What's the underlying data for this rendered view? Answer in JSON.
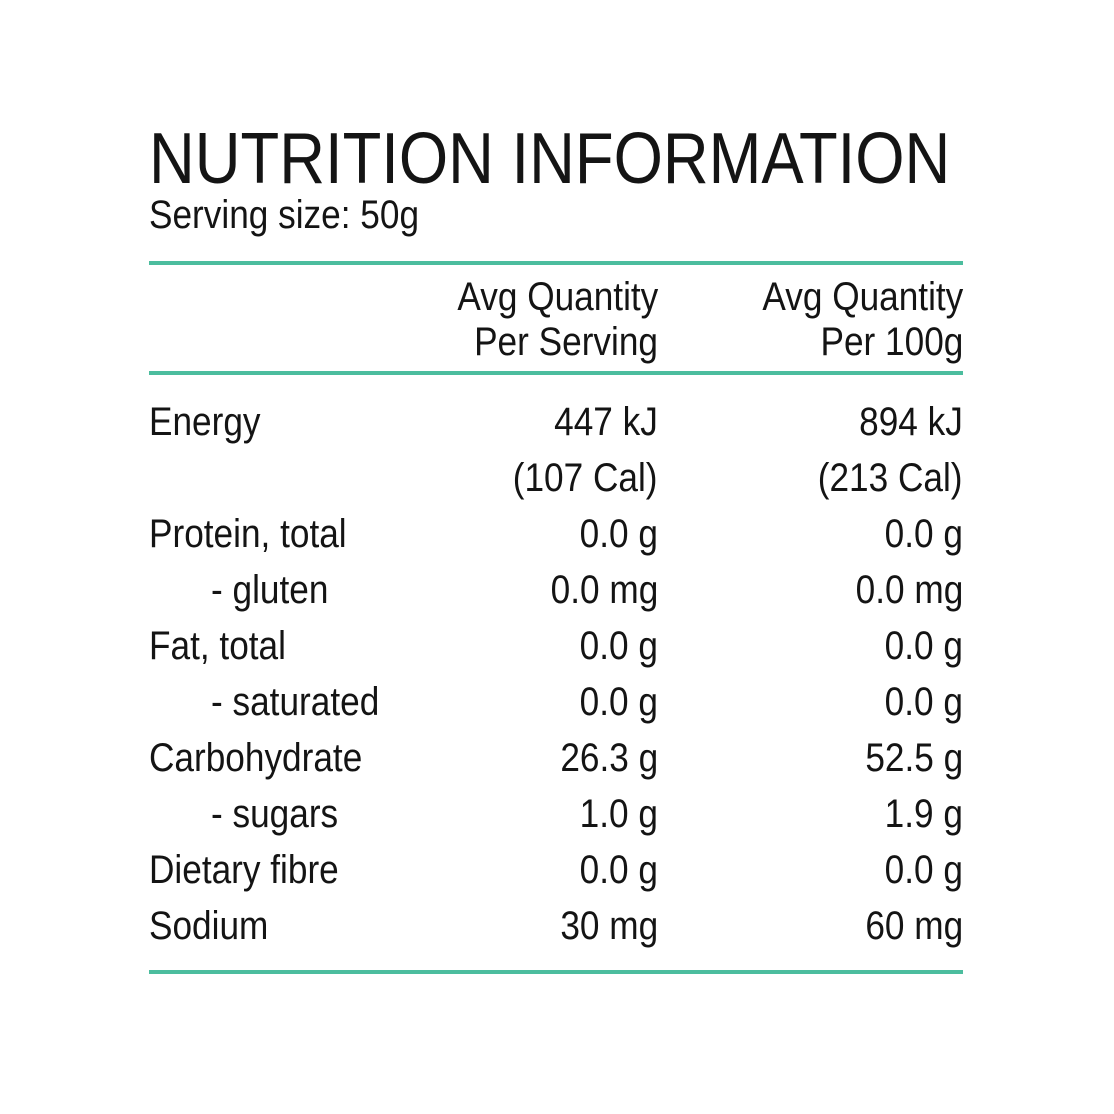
{
  "label": {
    "title": "NUTRITION INFORMATION",
    "serving_size": "Serving size: 50g"
  },
  "table": {
    "header": {
      "per_serving": {
        "line1": "Avg Quantity",
        "line2": "Per Serving"
      },
      "per_100g": {
        "line1": "Avg Quantity",
        "line2": "Per 100g"
      }
    },
    "rows": [
      {
        "label": "Energy",
        "per_serving": "447 kJ",
        "per_100g": "894 kJ"
      },
      {
        "label": "",
        "per_serving": "(107 Cal)",
        "per_100g": "(213 Cal)"
      },
      {
        "label": "Protein, total",
        "per_serving": "0.0 g",
        "per_100g": "0.0 g"
      },
      {
        "label": "- gluten",
        "per_serving": "0.0 mg",
        "per_100g": "0.0 mg"
      },
      {
        "label": "Fat, total",
        "per_serving": "0.0 g",
        "per_100g": "0.0 g"
      },
      {
        "label": "- saturated",
        "per_serving": "0.0 g",
        "per_100g": "0.0 g"
      },
      {
        "label": "Carbohydrate",
        "per_serving": "26.3 g",
        "per_100g": "52.5 g"
      },
      {
        "label": "- sugars",
        "per_serving": "1.0 g",
        "per_100g": "1.9 g"
      },
      {
        "label": "Dietary fibre",
        "per_serving": "0.0 g",
        "per_100g": "0.0 g"
      },
      {
        "label": "Sodium",
        "per_serving": "30 mg",
        "per_100g": "60 mg"
      }
    ]
  },
  "colors": {
    "accent_line": "#4CBD9E",
    "text": "#141414",
    "background": "#ffffff"
  }
}
